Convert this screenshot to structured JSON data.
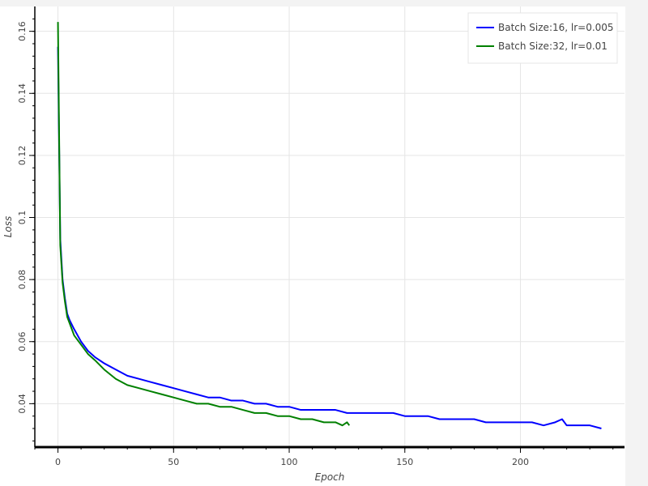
{
  "chart_data": {
    "type": "line",
    "title": "",
    "xlabel": "Epoch",
    "ylabel": "Loss",
    "xlim": [
      -10,
      245
    ],
    "ylim": [
      0.026,
      0.168
    ],
    "grid": true,
    "legend_position": "top-right",
    "x_ticks": [
      0,
      50,
      100,
      150,
      200
    ],
    "x_tick_labels": [
      "0",
      "50",
      "100",
      "150",
      "200"
    ],
    "y_ticks": [
      0.04,
      0.06,
      0.08,
      0.1,
      0.12,
      0.14,
      0.16
    ],
    "y_tick_labels": [
      "0.04",
      "0.06",
      "0.08",
      "0.1",
      "0.12",
      "0.14",
      "0.16"
    ],
    "series": [
      {
        "name": "Batch Size:16, lr=0.005",
        "color": "#0000ff",
        "points": [
          [
            0,
            0.155
          ],
          [
            1,
            0.093
          ],
          [
            2,
            0.08
          ],
          [
            3,
            0.074
          ],
          [
            4,
            0.069
          ],
          [
            5,
            0.067
          ],
          [
            7,
            0.064
          ],
          [
            10,
            0.06
          ],
          [
            13,
            0.057
          ],
          [
            16,
            0.055
          ],
          [
            20,
            0.053
          ],
          [
            25,
            0.051
          ],
          [
            30,
            0.049
          ],
          [
            35,
            0.048
          ],
          [
            40,
            0.047
          ],
          [
            45,
            0.046
          ],
          [
            50,
            0.045
          ],
          [
            55,
            0.044
          ],
          [
            60,
            0.043
          ],
          [
            65,
            0.042
          ],
          [
            70,
            0.042
          ],
          [
            75,
            0.041
          ],
          [
            80,
            0.041
          ],
          [
            85,
            0.04
          ],
          [
            90,
            0.04
          ],
          [
            95,
            0.039
          ],
          [
            100,
            0.039
          ],
          [
            105,
            0.038
          ],
          [
            110,
            0.038
          ],
          [
            115,
            0.038
          ],
          [
            120,
            0.038
          ],
          [
            125,
            0.037
          ],
          [
            130,
            0.037
          ],
          [
            135,
            0.037
          ],
          [
            140,
            0.037
          ],
          [
            145,
            0.037
          ],
          [
            150,
            0.036
          ],
          [
            155,
            0.036
          ],
          [
            160,
            0.036
          ],
          [
            165,
            0.035
          ],
          [
            170,
            0.035
          ],
          [
            175,
            0.035
          ],
          [
            180,
            0.035
          ],
          [
            185,
            0.034
          ],
          [
            190,
            0.034
          ],
          [
            195,
            0.034
          ],
          [
            200,
            0.034
          ],
          [
            205,
            0.034
          ],
          [
            210,
            0.033
          ],
          [
            215,
            0.034
          ],
          [
            218,
            0.035
          ],
          [
            220,
            0.033
          ],
          [
            225,
            0.033
          ],
          [
            230,
            0.033
          ],
          [
            235,
            0.032
          ]
        ]
      },
      {
        "name": "Batch Size:32, lr=0.01",
        "color": "#008000",
        "points": [
          [
            0,
            0.163
          ],
          [
            1,
            0.091
          ],
          [
            2,
            0.079
          ],
          [
            3,
            0.073
          ],
          [
            4,
            0.068
          ],
          [
            5,
            0.066
          ],
          [
            7,
            0.062
          ],
          [
            10,
            0.059
          ],
          [
            13,
            0.056
          ],
          [
            16,
            0.054
          ],
          [
            20,
            0.051
          ],
          [
            25,
            0.048
          ],
          [
            30,
            0.046
          ],
          [
            35,
            0.045
          ],
          [
            40,
            0.044
          ],
          [
            45,
            0.043
          ],
          [
            50,
            0.042
          ],
          [
            55,
            0.041
          ],
          [
            60,
            0.04
          ],
          [
            65,
            0.04
          ],
          [
            70,
            0.039
          ],
          [
            75,
            0.039
          ],
          [
            80,
            0.038
          ],
          [
            85,
            0.037
          ],
          [
            90,
            0.037
          ],
          [
            95,
            0.036
          ],
          [
            100,
            0.036
          ],
          [
            105,
            0.035
          ],
          [
            110,
            0.035
          ],
          [
            115,
            0.034
          ],
          [
            120,
            0.034
          ],
          [
            123,
            0.033
          ],
          [
            125,
            0.034
          ],
          [
            126,
            0.033
          ]
        ]
      }
    ]
  }
}
